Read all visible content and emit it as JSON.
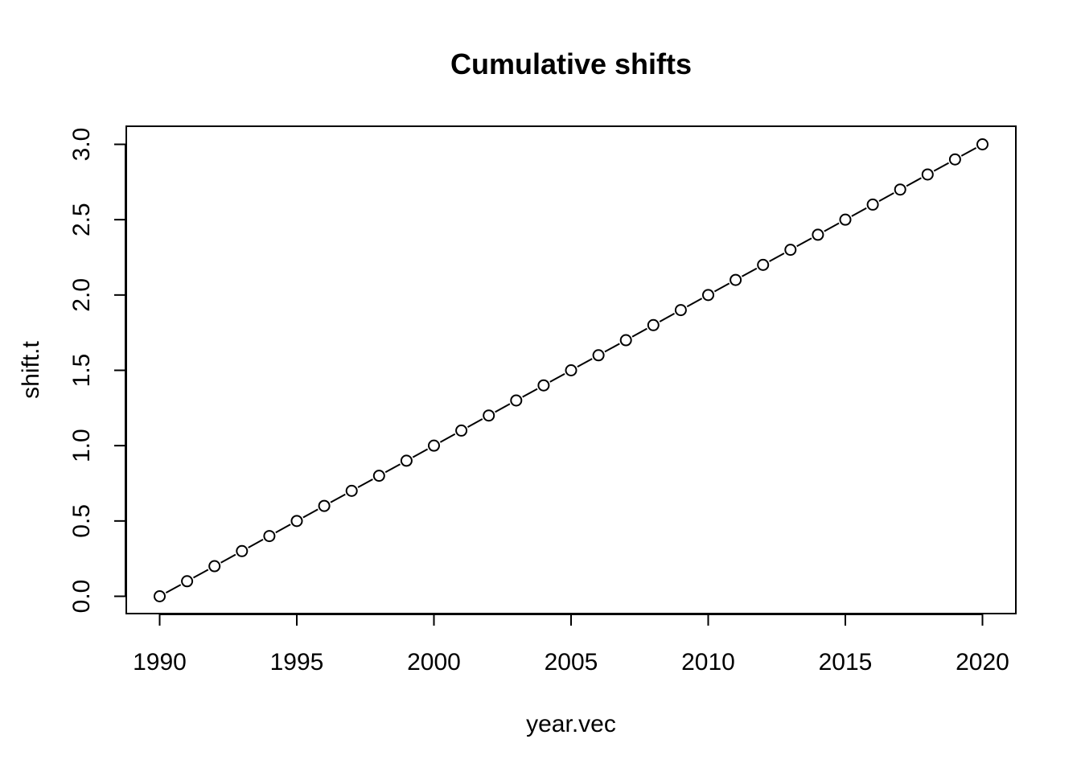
{
  "chart_data": {
    "type": "line",
    "title": "Cumulative shifts",
    "xlabel": "year.vec",
    "ylabel": "shift.t",
    "xlim": [
      1990,
      2020
    ],
    "ylim": [
      0,
      3
    ],
    "x_ticks": [
      "1990",
      "1995",
      "2000",
      "2005",
      "2010",
      "2015",
      "2020"
    ],
    "y_ticks": [
      "0.0",
      "0.5",
      "1.0",
      "1.5",
      "2.0",
      "2.5",
      "3.0"
    ],
    "grid": false,
    "series": [
      {
        "style": "line with open circle markers",
        "color": "#000000",
        "x": [
          1990,
          1991,
          1992,
          1993,
          1994,
          1995,
          1996,
          1997,
          1998,
          1999,
          2000,
          2001,
          2002,
          2003,
          2004,
          2005,
          2006,
          2007,
          2008,
          2009,
          2010,
          2011,
          2012,
          2013,
          2014,
          2015,
          2016,
          2017,
          2018,
          2019,
          2020
        ],
        "y": [
          0.0,
          0.1,
          0.2,
          0.3,
          0.4,
          0.5,
          0.6,
          0.7,
          0.8,
          0.9,
          1.0,
          1.1,
          1.2,
          1.3,
          1.4,
          1.5,
          1.6,
          1.7,
          1.8,
          1.9,
          2.0,
          2.1,
          2.2,
          2.3,
          2.4,
          2.5,
          2.6,
          2.7,
          2.8,
          2.9,
          3.0
        ]
      }
    ]
  }
}
